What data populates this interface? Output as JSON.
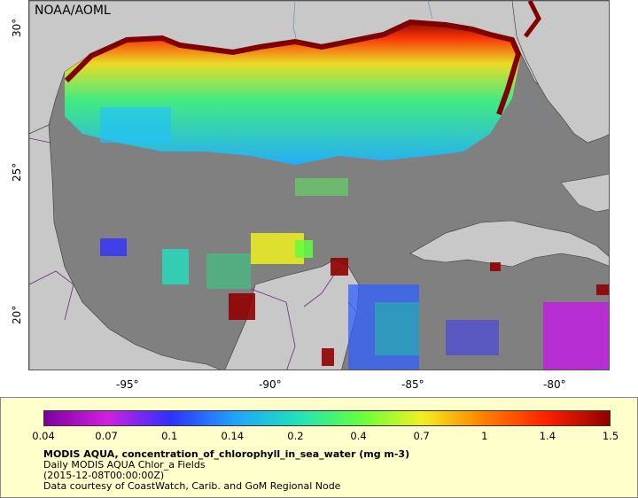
{
  "map": {
    "credit": "NOAA/AOML",
    "lon_ticks": [
      "-95°",
      "-90°",
      "-85°",
      "-80°"
    ],
    "lat_ticks": [
      "30°",
      "25°",
      "20°"
    ]
  },
  "legend": {
    "ticks": [
      "0.04",
      "0.07",
      "0.1",
      "0.14",
      "0.2",
      "0.4",
      "0.7",
      "1",
      "1.4",
      "1.5"
    ],
    "colors": [
      "#8000a0",
      "#d020e0",
      "#3030ff",
      "#20a0ff",
      "#20e0c0",
      "#60ff40",
      "#f0f020",
      "#ff8000",
      "#ff2000",
      "#900000"
    ],
    "title": "MODIS AQUA, concentration_of_chlorophyll_in_sea_water (mg m-3)",
    "line2": "Daily MODIS AQUA Chlor_a Fields",
    "line3": "(2015-12-08T00:00:00Z)",
    "line4": "Data courtesy of CoastWatch, Carib. and GoM Regional Node"
  }
}
